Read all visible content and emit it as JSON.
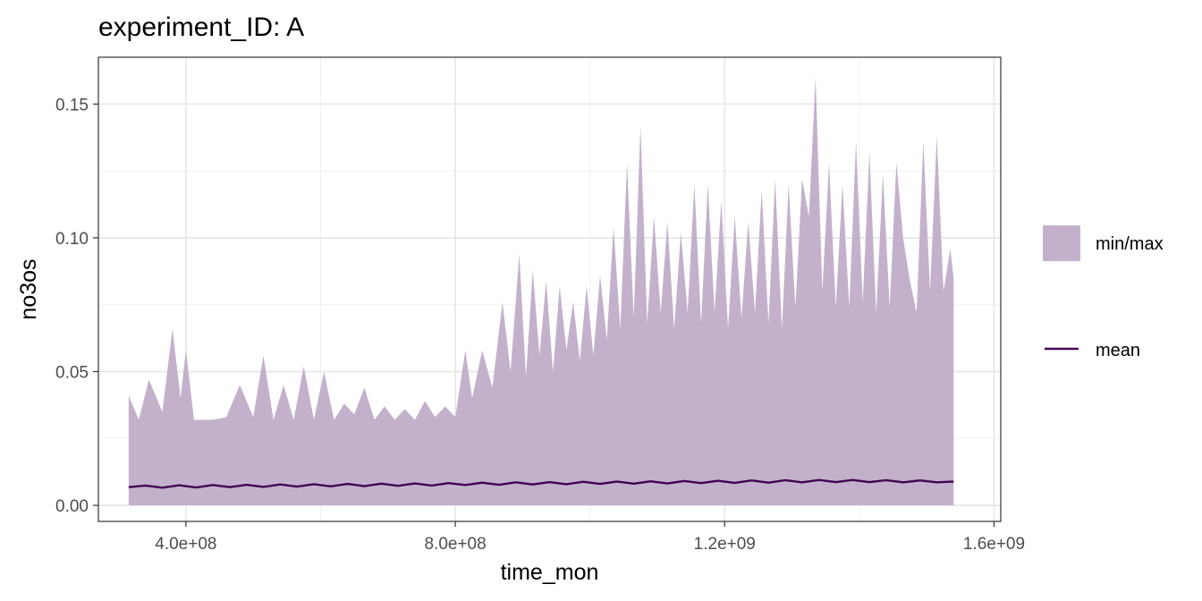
{
  "chart_data": {
    "type": "area",
    "title": "experiment_ID: A",
    "xlabel": "time_mon",
    "ylabel": "no3os",
    "xlim": [
      270000000,
      1610000000
    ],
    "ylim": [
      -0.006,
      0.1675
    ],
    "x_ticks": [
      400000000,
      800000000,
      1200000000,
      1600000000
    ],
    "x_tick_labels": [
      "4.0e+08",
      "8.0e+08",
      "1.2e+09",
      "1.6e+09"
    ],
    "y_ticks": [
      0.0,
      0.05,
      0.1,
      0.15
    ],
    "y_tick_labels": [
      "0.00",
      "0.05",
      "0.10",
      "0.15"
    ],
    "grid": true,
    "legend_position": "right",
    "legend": [
      {
        "label": "min/max",
        "kind": "ribbon",
        "color": "#c3b1cc"
      },
      {
        "label": "mean",
        "kind": "line",
        "color": "#440154"
      }
    ],
    "series": [
      {
        "name": "min/max",
        "kind": "ribbon",
        "x": [
          315000000,
          330000000,
          345000000,
          365000000,
          380000000,
          392000000,
          400000000,
          412000000,
          420000000,
          440000000,
          460000000,
          480000000,
          500000000,
          515000000,
          530000000,
          545000000,
          560000000,
          575000000,
          590000000,
          605000000,
          620000000,
          635000000,
          650000000,
          665000000,
          680000000,
          695000000,
          710000000,
          725000000,
          740000000,
          755000000,
          770000000,
          785000000,
          800000000,
          815000000,
          825000000,
          840000000,
          855000000,
          870000000,
          882000000,
          895000000,
          905000000,
          915000000,
          925000000,
          935000000,
          945000000,
          955000000,
          965000000,
          975000000,
          985000000,
          995000000,
          1005000000,
          1015000000,
          1025000000,
          1035000000,
          1045000000,
          1055000000,
          1065000000,
          1075000000,
          1085000000,
          1095000000,
          1105000000,
          1115000000,
          1125000000,
          1135000000,
          1145000000,
          1155000000,
          1165000000,
          1175000000,
          1185000000,
          1195000000,
          1205000000,
          1215000000,
          1225000000,
          1235000000,
          1245000000,
          1255000000,
          1265000000,
          1275000000,
          1285000000,
          1295000000,
          1305000000,
          1315000000,
          1325000000,
          1335000000,
          1345000000,
          1355000000,
          1365000000,
          1375000000,
          1385000000,
          1395000000,
          1405000000,
          1415000000,
          1425000000,
          1435000000,
          1445000000,
          1455000000,
          1465000000,
          1475000000,
          1485000000,
          1495000000,
          1505000000,
          1515000000,
          1525000000,
          1535000000,
          1540000000
        ],
        "ymin": [
          0.0,
          0.0,
          0.0,
          0.0,
          0.0,
          0.0,
          0.0,
          0.0,
          0.0,
          0.0,
          0.0,
          0.0,
          0.0,
          0.0,
          0.0,
          0.0,
          0.0,
          0.0,
          0.0,
          0.0,
          0.0,
          0.0,
          0.0,
          0.0,
          0.0,
          0.0,
          0.0,
          0.0,
          0.0,
          0.0,
          0.0,
          0.0,
          0.0,
          0.0,
          0.0,
          0.0,
          0.0,
          0.0,
          0.0,
          0.0,
          0.0,
          0.0,
          0.0,
          0.0,
          0.0,
          0.0,
          0.0,
          0.0,
          0.0,
          0.0,
          0.0,
          0.0,
          0.0,
          0.0,
          0.0,
          0.0,
          0.0,
          0.0,
          0.0,
          0.0,
          0.0,
          0.0,
          0.0,
          0.0,
          0.0,
          0.0,
          0.0,
          0.0,
          0.0,
          0.0,
          0.0,
          0.0,
          0.0,
          0.0,
          0.0,
          0.0,
          0.0,
          0.0,
          0.0,
          0.0,
          0.0,
          0.0,
          0.0,
          0.0,
          0.0,
          0.0,
          0.0,
          0.0,
          0.0,
          0.0,
          0.0,
          0.0,
          0.0,
          0.0,
          0.0,
          0.0,
          0.0,
          0.0,
          0.0,
          0.0,
          0.0,
          0.0,
          0.0,
          0.0,
          0.0
        ],
        "ymax": [
          0.041,
          0.032,
          0.047,
          0.035,
          0.066,
          0.04,
          0.058,
          0.032,
          0.032,
          0.032,
          0.033,
          0.045,
          0.033,
          0.056,
          0.032,
          0.045,
          0.032,
          0.052,
          0.032,
          0.05,
          0.032,
          0.038,
          0.034,
          0.044,
          0.032,
          0.037,
          0.032,
          0.036,
          0.032,
          0.039,
          0.033,
          0.037,
          0.033,
          0.058,
          0.04,
          0.058,
          0.044,
          0.076,
          0.05,
          0.094,
          0.048,
          0.088,
          0.056,
          0.084,
          0.05,
          0.082,
          0.058,
          0.076,
          0.054,
          0.082,
          0.056,
          0.086,
          0.062,
          0.104,
          0.066,
          0.128,
          0.07,
          0.142,
          0.068,
          0.108,
          0.072,
          0.106,
          0.066,
          0.102,
          0.072,
          0.12,
          0.068,
          0.12,
          0.072,
          0.114,
          0.066,
          0.108,
          0.07,
          0.106,
          0.072,
          0.118,
          0.068,
          0.122,
          0.066,
          0.12,
          0.074,
          0.122,
          0.108,
          0.16,
          0.08,
          0.128,
          0.074,
          0.12,
          0.074,
          0.136,
          0.076,
          0.132,
          0.072,
          0.124,
          0.074,
          0.128,
          0.1,
          0.084,
          0.072,
          0.136,
          0.08,
          0.138,
          0.08,
          0.096,
          0.085
        ]
      },
      {
        "name": "mean",
        "kind": "line",
        "x": [
          315000000,
          340000000,
          365000000,
          390000000,
          415000000,
          440000000,
          465000000,
          490000000,
          515000000,
          540000000,
          565000000,
          590000000,
          615000000,
          640000000,
          665000000,
          690000000,
          715000000,
          740000000,
          765000000,
          790000000,
          815000000,
          840000000,
          865000000,
          890000000,
          915000000,
          940000000,
          965000000,
          990000000,
          1015000000,
          1040000000,
          1065000000,
          1090000000,
          1115000000,
          1140000000,
          1165000000,
          1190000000,
          1215000000,
          1240000000,
          1265000000,
          1290000000,
          1315000000,
          1340000000,
          1365000000,
          1390000000,
          1415000000,
          1440000000,
          1465000000,
          1490000000,
          1515000000,
          1540000000
        ],
        "y": [
          0.0068,
          0.0074,
          0.0066,
          0.0075,
          0.0067,
          0.0076,
          0.0068,
          0.0077,
          0.0069,
          0.0078,
          0.007,
          0.0079,
          0.0071,
          0.008,
          0.0072,
          0.0081,
          0.0073,
          0.0082,
          0.0074,
          0.0083,
          0.0076,
          0.0085,
          0.0077,
          0.0086,
          0.0078,
          0.0087,
          0.0079,
          0.0088,
          0.008,
          0.0089,
          0.0081,
          0.009,
          0.0082,
          0.0091,
          0.0083,
          0.0092,
          0.0084,
          0.0093,
          0.0085,
          0.0094,
          0.0086,
          0.0095,
          0.0087,
          0.0095,
          0.0087,
          0.0094,
          0.0086,
          0.0093,
          0.0086,
          0.0089
        ]
      }
    ]
  }
}
